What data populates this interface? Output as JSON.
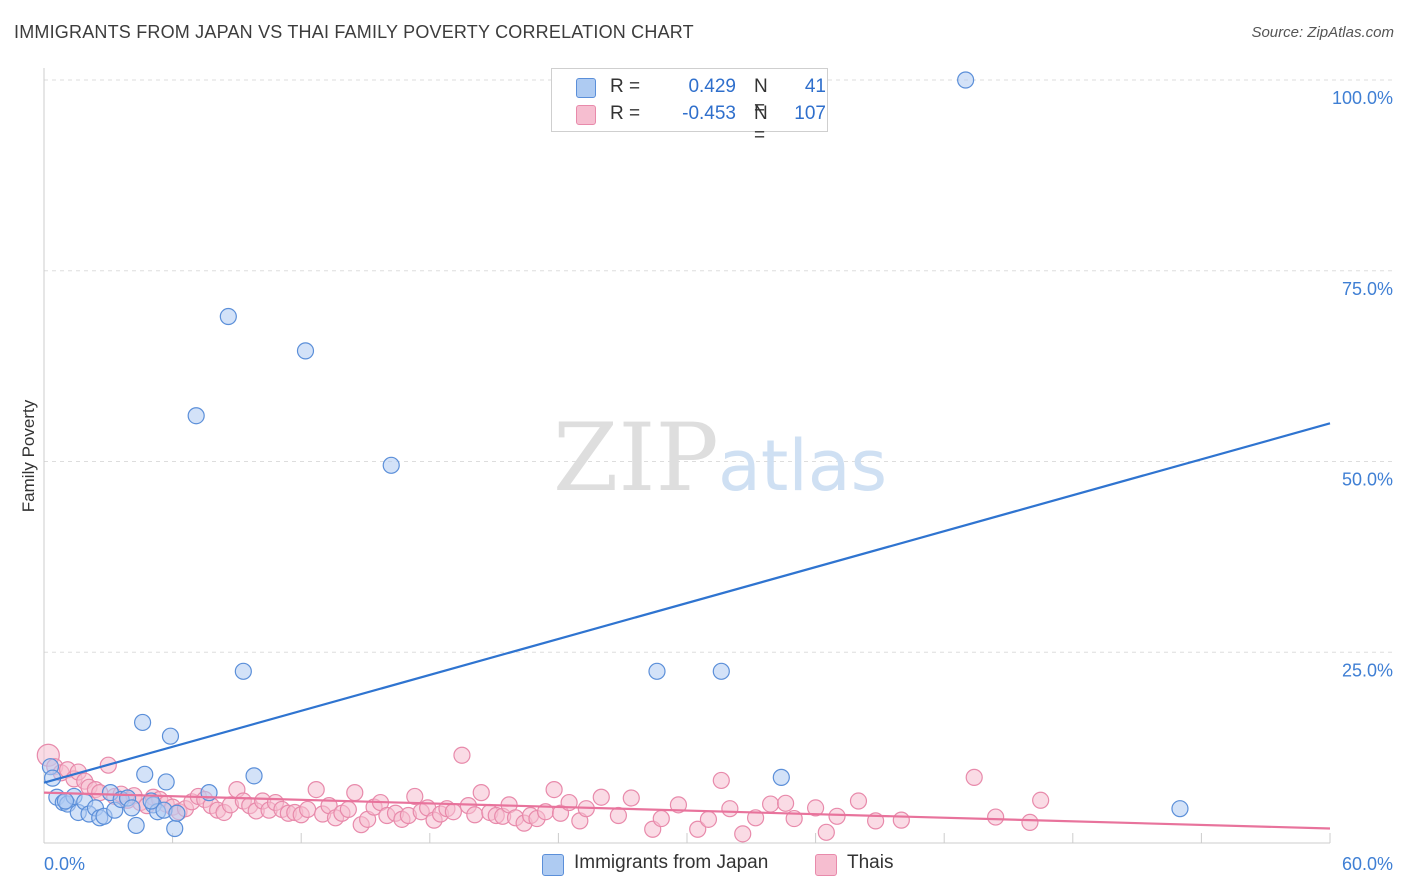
{
  "title": "IMMIGRANTS FROM JAPAN VS THAI FAMILY POVERTY CORRELATION CHART",
  "source": "Source: ZipAtlas.com",
  "watermark": {
    "zip": "ZIP",
    "atlas": "atlas"
  },
  "colors": {
    "blue_fill": "#aecbf2",
    "blue_stroke": "#5b8fd9",
    "blue_line": "#2f74d0",
    "pink_fill": "#f6bed0",
    "pink_stroke": "#e88aab",
    "pink_line": "#e8739c",
    "axis_text": "#3f7fd4",
    "grid": "#dddddd"
  },
  "legend": {
    "rows": [
      {
        "r_label": "R =",
        "r_value": "0.429",
        "n_label": "N =",
        "n_value": "41"
      },
      {
        "r_label": "R =",
        "r_value": "-0.453",
        "n_label": "N =",
        "n_value": "107"
      }
    ]
  },
  "bottom_legend": {
    "series1": "Immigrants from Japan",
    "series2": "Thais"
  },
  "chart_data": {
    "type": "scatter",
    "xlabel": "",
    "ylabel": "Family Poverty",
    "xlim": [
      0,
      60
    ],
    "ylim": [
      0,
      100
    ],
    "x_tick_labels": {
      "min": "0.0%",
      "max": "60.0%"
    },
    "y_ticks": [
      25,
      50,
      75,
      100
    ],
    "y_tick_labels": [
      "25.0%",
      "50.0%",
      "75.0%",
      "100.0%"
    ],
    "grid": true,
    "series": [
      {
        "name": "Immigrants from Japan",
        "color": "blue",
        "trend": {
          "x": [
            0,
            60
          ],
          "y": [
            7.9,
            55.0
          ]
        },
        "points": [
          [
            0.3,
            10.0
          ],
          [
            0.4,
            8.5
          ],
          [
            0.6,
            6.0
          ],
          [
            0.9,
            5.3
          ],
          [
            1.1,
            5.1
          ],
          [
            1.4,
            6.1
          ],
          [
            1.6,
            4.0
          ],
          [
            1.9,
            5.4
          ],
          [
            2.1,
            3.8
          ],
          [
            2.4,
            4.6
          ],
          [
            2.6,
            3.3
          ],
          [
            2.8,
            3.5
          ],
          [
            3.1,
            6.6
          ],
          [
            3.3,
            4.3
          ],
          [
            3.6,
            5.7
          ],
          [
            3.9,
            5.9
          ],
          [
            4.1,
            4.6
          ],
          [
            4.3,
            2.3
          ],
          [
            4.6,
            15.8
          ],
          [
            4.7,
            9.0
          ],
          [
            5.1,
            5.0
          ],
          [
            5.3,
            4.1
          ],
          [
            5.6,
            4.3
          ],
          [
            5.7,
            8.0
          ],
          [
            5.9,
            14.0
          ],
          [
            6.1,
            1.9
          ],
          [
            6.2,
            3.9
          ],
          [
            7.1,
            56.0
          ],
          [
            7.7,
            6.6
          ],
          [
            8.6,
            69.0
          ],
          [
            9.3,
            22.5
          ],
          [
            9.8,
            8.8
          ],
          [
            12.2,
            64.5
          ],
          [
            16.2,
            49.5
          ],
          [
            28.6,
            22.5
          ],
          [
            31.6,
            22.5
          ],
          [
            34.4,
            8.6
          ],
          [
            43.0,
            100.0
          ],
          [
            53.0,
            4.5
          ],
          [
            1.0,
            5.5
          ],
          [
            5.0,
            5.5
          ]
        ]
      },
      {
        "name": "Thais",
        "color": "pink",
        "trend": {
          "x": [
            0,
            60
          ],
          "y": [
            6.6,
            1.9
          ]
        },
        "points": [
          [
            0.2,
            11.5
          ],
          [
            0.5,
            10.0
          ],
          [
            0.8,
            9.2
          ],
          [
            1.1,
            9.6
          ],
          [
            1.4,
            8.4
          ],
          [
            1.6,
            9.3
          ],
          [
            1.9,
            8.1
          ],
          [
            2.1,
            7.3
          ],
          [
            2.4,
            7.0
          ],
          [
            2.6,
            6.6
          ],
          [
            3.0,
            10.2
          ],
          [
            3.3,
            6.1
          ],
          [
            3.6,
            6.4
          ],
          [
            3.9,
            5.6
          ],
          [
            4.2,
            6.2
          ],
          [
            4.5,
            5.3
          ],
          [
            4.8,
            4.9
          ],
          [
            5.1,
            6.0
          ],
          [
            5.4,
            5.7
          ],
          [
            5.7,
            5.1
          ],
          [
            6.0,
            4.7
          ],
          [
            6.3,
            4.1
          ],
          [
            6.6,
            4.5
          ],
          [
            6.9,
            5.4
          ],
          [
            7.2,
            6.1
          ],
          [
            7.5,
            5.7
          ],
          [
            7.8,
            4.9
          ],
          [
            8.1,
            4.3
          ],
          [
            8.4,
            4.0
          ],
          [
            8.7,
            5.0
          ],
          [
            9.0,
            7.0
          ],
          [
            9.3,
            5.5
          ],
          [
            9.6,
            4.9
          ],
          [
            9.9,
            4.2
          ],
          [
            10.2,
            5.5
          ],
          [
            10.5,
            4.3
          ],
          [
            10.8,
            5.3
          ],
          [
            11.1,
            4.4
          ],
          [
            11.4,
            3.9
          ],
          [
            11.7,
            4.0
          ],
          [
            12.0,
            3.7
          ],
          [
            12.3,
            4.4
          ],
          [
            12.7,
            7.0
          ],
          [
            13.0,
            3.8
          ],
          [
            13.3,
            4.9
          ],
          [
            13.6,
            3.3
          ],
          [
            13.9,
            3.9
          ],
          [
            14.2,
            4.4
          ],
          [
            14.5,
            6.6
          ],
          [
            14.8,
            2.4
          ],
          [
            15.1,
            3.1
          ],
          [
            15.4,
            4.7
          ],
          [
            15.7,
            5.3
          ],
          [
            16.0,
            3.6
          ],
          [
            16.4,
            3.9
          ],
          [
            16.7,
            3.1
          ],
          [
            17.0,
            3.6
          ],
          [
            17.3,
            6.1
          ],
          [
            17.6,
            4.1
          ],
          [
            17.9,
            4.6
          ],
          [
            18.2,
            3.0
          ],
          [
            18.5,
            3.8
          ],
          [
            18.8,
            4.5
          ],
          [
            19.1,
            4.1
          ],
          [
            19.5,
            11.5
          ],
          [
            19.8,
            4.9
          ],
          [
            20.1,
            3.7
          ],
          [
            20.4,
            6.6
          ],
          [
            20.8,
            4.0
          ],
          [
            21.1,
            3.6
          ],
          [
            21.4,
            3.5
          ],
          [
            21.7,
            5.0
          ],
          [
            22.0,
            3.3
          ],
          [
            22.4,
            2.6
          ],
          [
            22.7,
            3.6
          ],
          [
            23.0,
            3.2
          ],
          [
            23.4,
            4.1
          ],
          [
            23.8,
            7.0
          ],
          [
            24.1,
            3.9
          ],
          [
            24.5,
            5.3
          ],
          [
            25.0,
            2.9
          ],
          [
            25.3,
            4.5
          ],
          [
            26.0,
            6.0
          ],
          [
            26.8,
            3.6
          ],
          [
            27.4,
            5.9
          ],
          [
            28.4,
            1.8
          ],
          [
            28.8,
            3.2
          ],
          [
            29.6,
            5.0
          ],
          [
            30.5,
            1.8
          ],
          [
            31.0,
            3.1
          ],
          [
            31.6,
            8.2
          ],
          [
            32.0,
            4.5
          ],
          [
            32.6,
            1.2
          ],
          [
            33.2,
            3.3
          ],
          [
            33.9,
            5.1
          ],
          [
            34.6,
            5.2
          ],
          [
            35.0,
            3.2
          ],
          [
            36.0,
            4.6
          ],
          [
            36.5,
            1.4
          ],
          [
            37.0,
            3.5
          ],
          [
            38.0,
            5.5
          ],
          [
            38.8,
            2.9
          ],
          [
            40.0,
            3.0
          ],
          [
            43.4,
            8.6
          ],
          [
            44.4,
            3.4
          ],
          [
            46.0,
            2.7
          ],
          [
            46.5,
            5.6
          ]
        ]
      }
    ]
  }
}
